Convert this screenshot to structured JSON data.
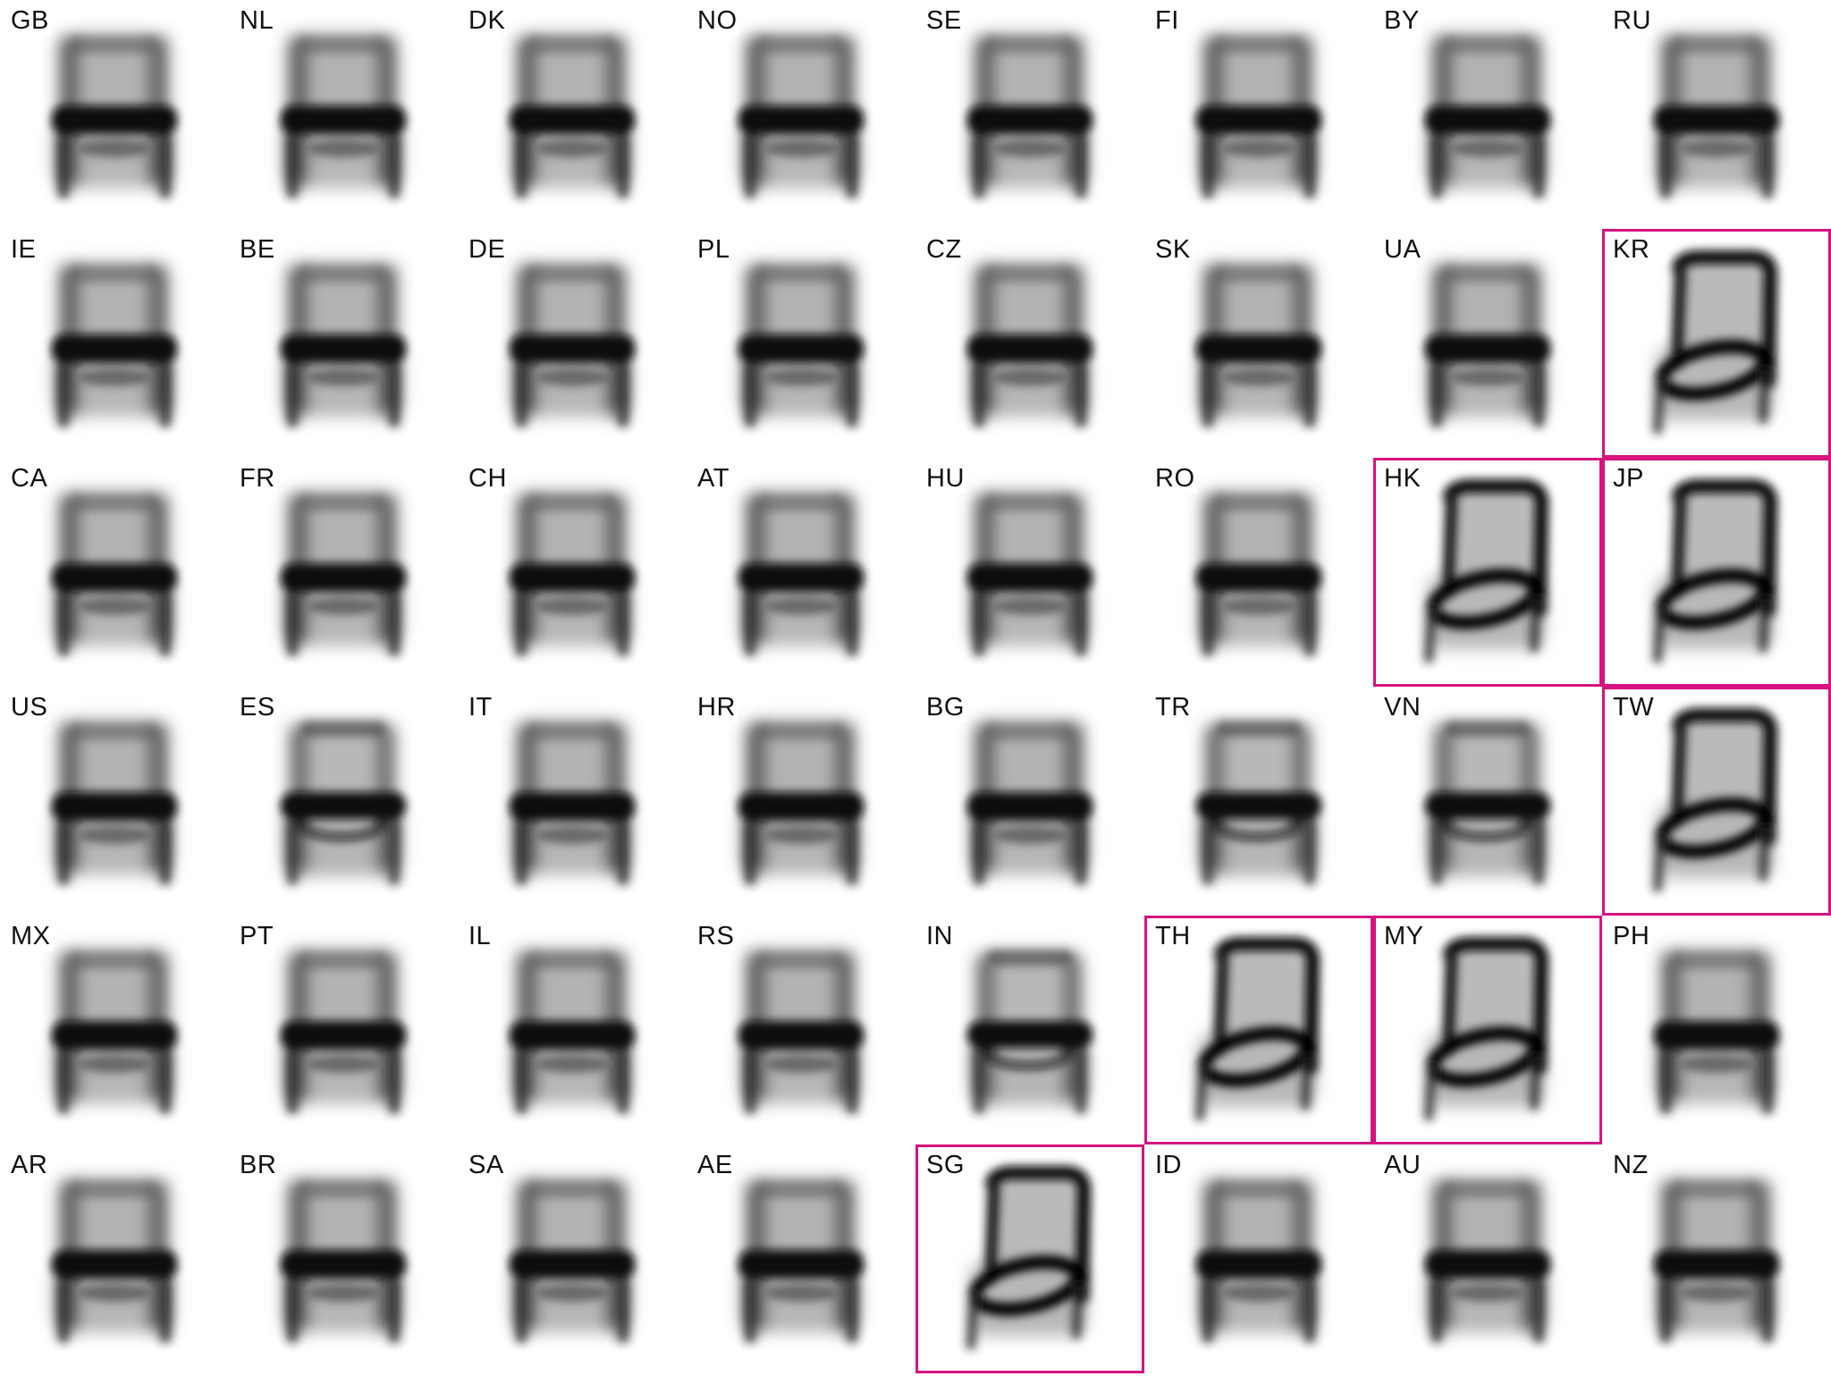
{
  "grid": {
    "columns": 8,
    "rows": 6,
    "highlight_color": "#d6137f",
    "cells": [
      {
        "code": "GB",
        "style": "western",
        "highlight": false
      },
      {
        "code": "NL",
        "style": "western",
        "highlight": false
      },
      {
        "code": "DK",
        "style": "western",
        "highlight": false
      },
      {
        "code": "NO",
        "style": "western",
        "highlight": false
      },
      {
        "code": "SE",
        "style": "western",
        "highlight": false
      },
      {
        "code": "FI",
        "style": "western",
        "highlight": false
      },
      {
        "code": "BY",
        "style": "western",
        "highlight": false
      },
      {
        "code": "RU",
        "style": "western",
        "highlight": false
      },
      {
        "code": "IE",
        "style": "western",
        "highlight": false
      },
      {
        "code": "BE",
        "style": "western",
        "highlight": false
      },
      {
        "code": "DE",
        "style": "western",
        "highlight": false
      },
      {
        "code": "PL",
        "style": "western",
        "highlight": false
      },
      {
        "code": "CZ",
        "style": "western",
        "highlight": false
      },
      {
        "code": "SK",
        "style": "western",
        "highlight": false
      },
      {
        "code": "UA",
        "style": "western",
        "highlight": false
      },
      {
        "code": "KR",
        "style": "eastern",
        "highlight": true
      },
      {
        "code": "CA",
        "style": "western",
        "highlight": false
      },
      {
        "code": "FR",
        "style": "western",
        "highlight": false
      },
      {
        "code": "CH",
        "style": "western",
        "highlight": false
      },
      {
        "code": "AT",
        "style": "western",
        "highlight": false
      },
      {
        "code": "HU",
        "style": "western",
        "highlight": false
      },
      {
        "code": "RO",
        "style": "western",
        "highlight": false
      },
      {
        "code": "HK",
        "style": "eastern",
        "highlight": true
      },
      {
        "code": "JP",
        "style": "eastern",
        "highlight": true
      },
      {
        "code": "US",
        "style": "western",
        "highlight": false
      },
      {
        "code": "ES",
        "style": "mixed",
        "highlight": false
      },
      {
        "code": "IT",
        "style": "western",
        "highlight": false
      },
      {
        "code": "HR",
        "style": "western",
        "highlight": false
      },
      {
        "code": "BG",
        "style": "western",
        "highlight": false
      },
      {
        "code": "TR",
        "style": "mixed",
        "highlight": false
      },
      {
        "code": "VN",
        "style": "mixed",
        "highlight": false
      },
      {
        "code": "TW",
        "style": "eastern",
        "highlight": true
      },
      {
        "code": "MX",
        "style": "western",
        "highlight": false
      },
      {
        "code": "PT",
        "style": "western",
        "highlight": false
      },
      {
        "code": "IL",
        "style": "western",
        "highlight": false
      },
      {
        "code": "RS",
        "style": "western",
        "highlight": false
      },
      {
        "code": "IN",
        "style": "mixed",
        "highlight": false
      },
      {
        "code": "TH",
        "style": "eastern",
        "highlight": true
      },
      {
        "code": "MY",
        "style": "eastern",
        "highlight": true
      },
      {
        "code": "PH",
        "style": "western",
        "highlight": false
      },
      {
        "code": "AR",
        "style": "western",
        "highlight": false
      },
      {
        "code": "BR",
        "style": "western",
        "highlight": false
      },
      {
        "code": "SA",
        "style": "western",
        "highlight": false
      },
      {
        "code": "AE",
        "style": "western",
        "highlight": false
      },
      {
        "code": "SG",
        "style": "eastern",
        "highlight": true
      },
      {
        "code": "ID",
        "style": "western",
        "highlight": false
      },
      {
        "code": "AU",
        "style": "western",
        "highlight": false
      },
      {
        "code": "NZ",
        "style": "western",
        "highlight": false
      }
    ]
  }
}
